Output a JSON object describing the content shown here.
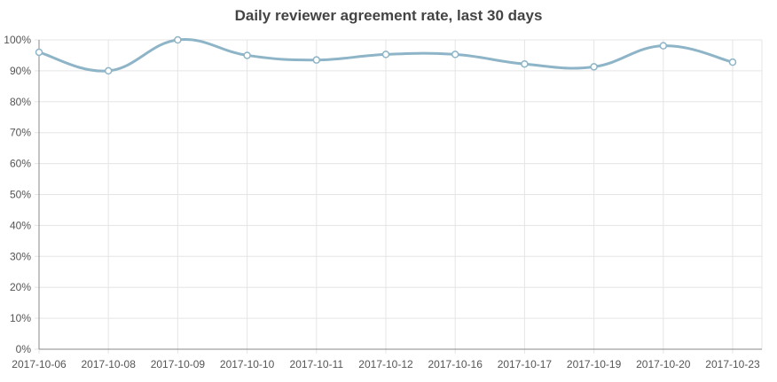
{
  "chart_data": {
    "type": "line",
    "title": "Daily reviewer agreement rate, last 30 days",
    "xlabel": "",
    "ylabel": "",
    "categories": [
      "2017-10-06",
      "2017-10-08",
      "2017-10-09",
      "2017-10-10",
      "2017-10-11",
      "2017-10-12",
      "2017-10-16",
      "2017-10-17",
      "2017-10-19",
      "2017-10-20",
      "2017-10-23"
    ],
    "series": [
      {
        "values": [
          96,
          90,
          100,
          95,
          93.5,
          95.3,
          95.3,
          92.2,
          91.3,
          98.1,
          92.8
        ]
      }
    ],
    "ylim": [
      0,
      100
    ],
    "y_ticks": [
      "0%",
      "10%",
      "20%",
      "30%",
      "40%",
      "50%",
      "60%",
      "70%",
      "80%",
      "90%",
      "100%"
    ],
    "grid": true,
    "legend": "none",
    "colors": {
      "line": "#8eb4c7",
      "grid": "#e5e5e5",
      "axis": "#888888",
      "point_fill": "#ffffff"
    }
  }
}
